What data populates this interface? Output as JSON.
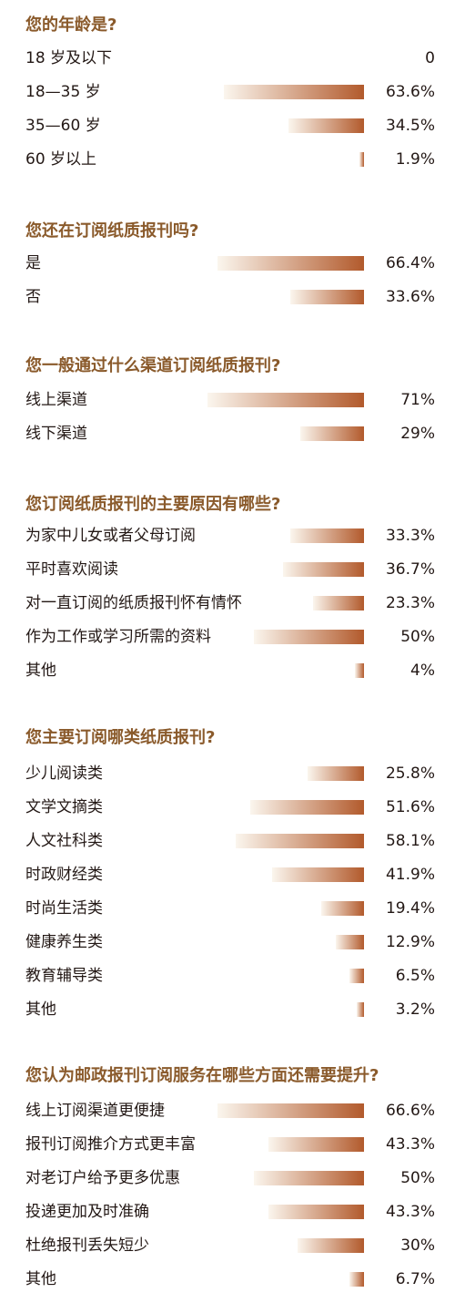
{
  "colors": {
    "title": "#8a5a2b",
    "text": "#231815",
    "bar_start": "#fbf6ee",
    "bar_end": "#b25a2c"
  },
  "chart_data": [
    {
      "type": "bar",
      "title": "您的年龄是?",
      "categories": [
        "18 岁及以下",
        "18—35 岁",
        "35—60 岁",
        "60 岁以上"
      ],
      "values": [
        0,
        63.6,
        34.5,
        1.9
      ],
      "labels": [
        "0",
        "63.6%",
        "34.5%",
        "1.9%"
      ]
    },
    {
      "type": "bar",
      "title": "您还在订阅纸质报刊吗?",
      "categories": [
        "是",
        "否"
      ],
      "values": [
        66.4,
        33.6
      ],
      "labels": [
        "66.4%",
        "33.6%"
      ]
    },
    {
      "type": "bar",
      "title": "您一般通过什么渠道订阅纸质报刊?",
      "categories": [
        "线上渠道",
        "线下渠道"
      ],
      "values": [
        71,
        29
      ],
      "labels": [
        "71%",
        "29%"
      ]
    },
    {
      "type": "bar",
      "title": "您订阅纸质报刊的主要原因有哪些?",
      "categories": [
        "为家中儿女或者父母订阅",
        "平时喜欢阅读",
        "对一直订阅的纸质报刊怀有情怀",
        "作为工作或学习所需的资料",
        "其他"
      ],
      "values": [
        33.3,
        36.7,
        23.3,
        50,
        4
      ],
      "labels": [
        "33.3%",
        "36.7%",
        "23.3%",
        "50%",
        "4%"
      ]
    },
    {
      "type": "bar",
      "title": "您主要订阅哪类纸质报刊?",
      "categories": [
        "少儿阅读类",
        "文学文摘类",
        "人文社科类",
        "时政财经类",
        "时尚生活类",
        "健康养生类",
        "教育辅导类",
        "其他"
      ],
      "values": [
        25.8,
        51.6,
        58.1,
        41.9,
        19.4,
        12.9,
        6.5,
        3.2
      ],
      "labels": [
        "25.8%",
        "51.6%",
        "58.1%",
        "41.9%",
        "19.4%",
        "12.9%",
        "6.5%",
        "3.2%"
      ]
    },
    {
      "type": "bar",
      "title": "您认为邮政报刊订阅服务在哪些方面还需要提升?",
      "categories": [
        "线上订阅渠道更便捷",
        "报刊订阅推介方式更丰富",
        "对老订户给予更多优惠",
        "投递更加及时准确",
        "杜绝报刊丢失短少",
        "其他"
      ],
      "values": [
        66.6,
        43.3,
        50,
        43.3,
        30,
        6.7
      ],
      "labels": [
        "66.6%",
        "43.3%",
        "50%",
        "43.3%",
        "30%",
        "6.7%"
      ]
    }
  ]
}
